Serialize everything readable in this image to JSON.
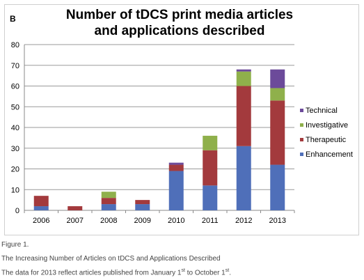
{
  "figure": {
    "panel_label": "B",
    "caption_label": "Figure 1.",
    "caption_title": "The Increasing Number of Articles on tDCS and Applications Described",
    "caption_note_parts": [
      "The data for 2013 reflect articles published from January 1",
      "st",
      " to October 1",
      "st",
      "."
    ]
  },
  "chart_data": {
    "type": "bar",
    "stacked": true,
    "title": "Number of tDCS print media articles and applications described",
    "title_lines": [
      "Number of tDCS print media articles",
      "and applications described"
    ],
    "xlabel": "",
    "ylabel": "",
    "categories": [
      "2006",
      "2007",
      "2008",
      "2009",
      "2010",
      "2011",
      "2012",
      "2013"
    ],
    "ylim": [
      0,
      80
    ],
    "yticks": [
      0,
      10,
      20,
      30,
      40,
      50,
      60,
      70,
      80
    ],
    "grid": true,
    "legend_position": "right",
    "series": [
      {
        "name": "Enhancement",
        "color": "#4f6fb9",
        "values": [
          2,
          0,
          3,
          3,
          19,
          12,
          31,
          22
        ]
      },
      {
        "name": "Therapeutic",
        "color": "#a33a3d",
        "values": [
          5,
          2,
          3,
          2,
          3,
          17,
          29,
          31
        ]
      },
      {
        "name": "Investigative",
        "color": "#8fb04b",
        "values": [
          0,
          0,
          3,
          0,
          0,
          7,
          7,
          6
        ]
      },
      {
        "name": "Technical",
        "color": "#6c4a9a",
        "values": [
          0,
          0,
          0,
          0,
          1,
          0,
          1,
          9
        ]
      }
    ],
    "legend_order": [
      "Technical",
      "Investigative",
      "Therapeutic",
      "Enhancement"
    ]
  }
}
